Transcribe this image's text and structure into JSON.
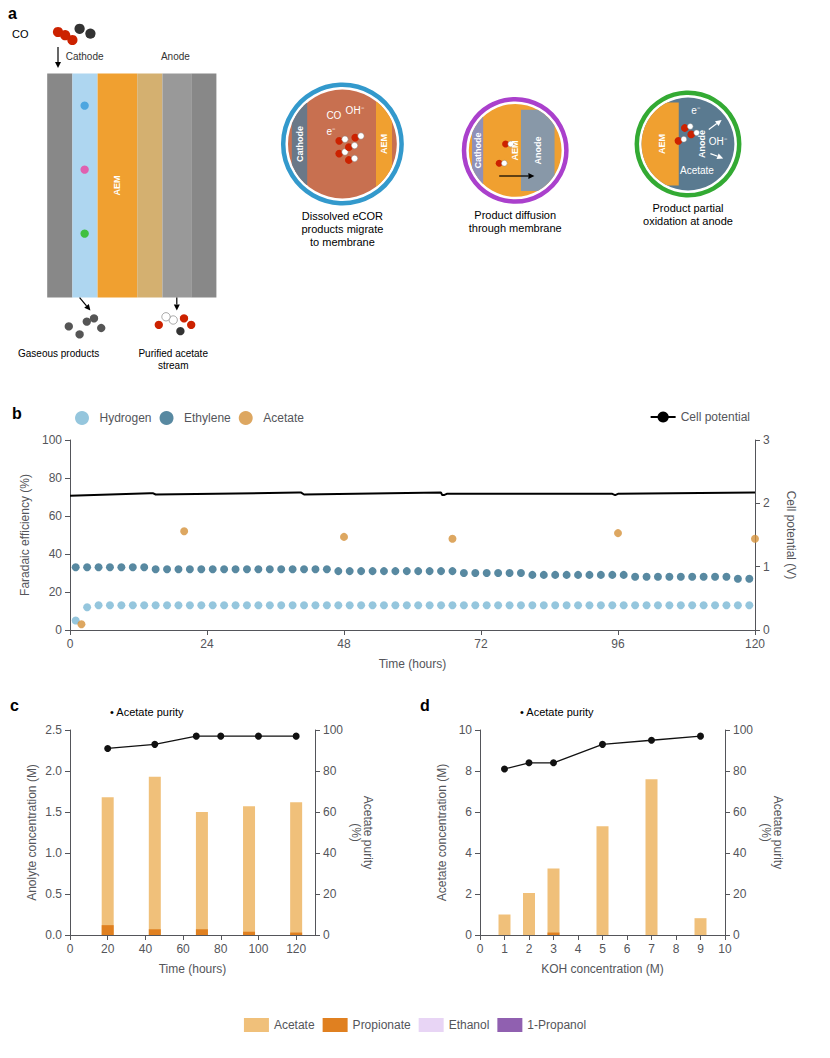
{
  "chart_data": [
    {
      "type": "diagram",
      "title": "a",
      "annotations": [
        "AEM",
        "Cathode",
        "Anode",
        "CO",
        "Gaseous products",
        "Purified acetate\nstream",
        "Cathode",
        "AEM",
        "CO",
        "OH⁻",
        "e⁻",
        "Dissolved eCOR\nproducts migrate\nto membrane",
        "Cathode",
        "AEM",
        "Anode",
        "Product diffusion\nthrough membrane",
        "AEM",
        "Anode",
        "e⁻",
        "OH⁻",
        "Acetate",
        "Product partial\noxidation at anode"
      ]
    },
    {
      "type": "scatter",
      "title": "b",
      "x_label": "Time (hours)",
      "y_label": "Faradaic efficiency (%)",
      "y2_label": "Cell potential (V)",
      "xlim": [
        0,
        120
      ],
      "xticks": [
        0,
        24,
        48,
        72,
        96,
        120
      ],
      "ylim": [
        0,
        100
      ],
      "yticks": [
        0,
        20,
        40,
        60,
        80,
        100
      ],
      "y2lim": [
        0,
        3
      ],
      "y2ticks": [
        0,
        1,
        2,
        3
      ],
      "grid": false,
      "legend": "top",
      "series": [
        {
          "name": "Hydrogen",
          "color": "#7ab8d4",
          "x": [
            1,
            3,
            5,
            7,
            9,
            11,
            13,
            15,
            17,
            19,
            21,
            23,
            25,
            27,
            29,
            31,
            33,
            35,
            37,
            39,
            41,
            43,
            45,
            47,
            49,
            51,
            53,
            55,
            57,
            59,
            61,
            63,
            65,
            67,
            69,
            71,
            73,
            75,
            77,
            79,
            81,
            83,
            85,
            87,
            89,
            91,
            93,
            95,
            97,
            99,
            101,
            103,
            105,
            107,
            109,
            111,
            113,
            115,
            117,
            119
          ],
          "values": [
            5,
            12,
            13,
            13,
            13,
            13,
            13,
            13,
            13,
            13,
            13,
            13,
            13,
            13,
            13,
            13,
            13,
            13,
            13,
            13,
            13,
            13,
            13,
            13,
            13,
            13,
            13,
            13,
            13,
            13,
            13,
            13,
            13,
            13,
            13,
            13,
            13,
            13,
            13,
            13,
            13,
            13,
            13,
            13,
            13,
            13,
            13,
            13,
            13,
            13,
            13,
            13,
            13,
            13,
            13,
            13,
            13,
            13,
            13,
            13
          ]
        },
        {
          "name": "Ethylene",
          "color": "#2e6b8a",
          "x": [
            1,
            3,
            5,
            7,
            9,
            11,
            13,
            15,
            17,
            19,
            21,
            23,
            25,
            27,
            29,
            31,
            33,
            35,
            37,
            39,
            41,
            43,
            45,
            47,
            49,
            51,
            53,
            55,
            57,
            59,
            61,
            63,
            65,
            67,
            69,
            71,
            73,
            75,
            77,
            79,
            81,
            83,
            85,
            87,
            89,
            91,
            93,
            95,
            97,
            99,
            101,
            103,
            105,
            107,
            109,
            111,
            113,
            115,
            117,
            119
          ],
          "values": [
            33,
            33,
            33,
            33,
            33,
            33,
            33,
            32,
            32,
            32,
            32,
            32,
            32,
            32,
            32,
            32,
            32,
            32,
            32,
            32,
            32,
            32,
            32,
            31,
            31,
            31,
            31,
            31,
            31,
            31,
            31,
            31,
            31,
            31,
            30,
            30,
            30,
            30,
            30,
            30,
            29,
            29,
            29,
            29,
            29,
            29,
            29,
            29,
            29,
            28,
            28,
            28,
            28,
            28,
            28,
            28,
            28,
            28,
            27,
            27
          ]
        },
        {
          "name": "Acetate",
          "color": "#d4913a",
          "x": [
            2,
            20,
            48,
            67,
            96,
            120
          ],
          "values": [
            3,
            52,
            49,
            48,
            51,
            48
          ]
        },
        {
          "name": "Cell potential",
          "type": "line",
          "axis": "y2",
          "color": "#000000",
          "x": [
            0,
            14,
            14.5,
            15,
            40,
            40.5,
            41,
            65,
            65.2,
            65.5,
            66,
            95,
            95.5,
            96,
            120
          ],
          "values": [
            2.12,
            2.16,
            2.16,
            2.14,
            2.17,
            2.17,
            2.14,
            2.17,
            2.13,
            2.13,
            2.15,
            2.15,
            2.13,
            2.15,
            2.17
          ]
        }
      ]
    },
    {
      "type": "bar",
      "title": "c",
      "stacked": true,
      "x_label": "Time (hours)",
      "y_label": "Anolyte concentration (M)",
      "y2_label": "Acetate purity\n(%)",
      "xlim": [
        0,
        130
      ],
      "xticks": [
        0,
        20,
        40,
        60,
        80,
        100,
        120
      ],
      "ylim": [
        0,
        2.5
      ],
      "yticks": [
        {
          "value": 0,
          "label": "0.0"
        },
        0.5,
        {
          "value": 1.0,
          "label": "1.0"
        },
        1.5,
        {
          "value": 2.0,
          "label": "2.0"
        },
        2.5
      ],
      "y2lim": [
        0,
        100
      ],
      "y2ticks": [
        0,
        20,
        40,
        60,
        80,
        100
      ],
      "grid": false,
      "annotations": [
        "• Acetate purity"
      ],
      "series": [
        {
          "name": "Acetate",
          "color": "#f0c07a",
          "x": [
            20,
            45,
            70,
            95,
            120
          ],
          "values": [
            1.68,
            1.93,
            1.5,
            1.57,
            1.62
          ]
        },
        {
          "name": "Propionate",
          "color": "#e08020",
          "x": [
            20,
            45,
            70,
            95,
            120
          ],
          "values": [
            0.12,
            0.07,
            0.07,
            0.04,
            0.03
          ]
        },
        {
          "name": "Acetate purity",
          "type": "line",
          "axis": "y2",
          "color": "#111111",
          "marker": "circle",
          "x": [
            20,
            45,
            67,
            80,
            100,
            120
          ],
          "values": [
            91,
            93,
            97,
            97,
            97,
            97
          ]
        }
      ]
    },
    {
      "type": "bar",
      "title": "d",
      "stacked": true,
      "x_label": "KOH concentration (M)",
      "y_label": "Acetate concentration (M)",
      "y2_label": "Acetate purity\n(%)",
      "xlim": [
        0,
        10
      ],
      "xticks": [
        0,
        1,
        2,
        3,
        4,
        5,
        6,
        7,
        8,
        9,
        10
      ],
      "ylim": [
        0,
        10
      ],
      "yticks": [
        0,
        2,
        4,
        6,
        8,
        10
      ],
      "y2lim": [
        0,
        100
      ],
      "y2ticks": [
        0,
        20,
        40,
        60,
        80,
        100
      ],
      "grid": false,
      "annotations": [
        "• Acetate purity"
      ],
      "series": [
        {
          "name": "Acetate",
          "color": "#f0c07a",
          "x": [
            1,
            2,
            3,
            5,
            7,
            9
          ],
          "values": [
            1.0,
            2.05,
            3.25,
            5.3,
            7.6,
            0.82
          ]
        },
        {
          "name": "Propionate",
          "color": "#e08020",
          "x": [
            1,
            2,
            3,
            5,
            7,
            9
          ],
          "values": [
            0.0,
            0.0,
            0.12,
            0.0,
            0.0,
            0.0
          ]
        },
        {
          "name": "Acetate purity",
          "type": "line",
          "axis": "y2",
          "color": "#111111",
          "marker": "circle",
          "x": [
            1,
            2,
            3,
            5,
            7,
            9
          ],
          "values": [
            81,
            84,
            84,
            93,
            95,
            97
          ]
        }
      ]
    },
    {
      "type": "legend",
      "series": [
        {
          "name": "Acetate",
          "color": "#f0c07a"
        },
        {
          "name": "Propionate",
          "color": "#e08020"
        },
        {
          "name": "Ethanol",
          "color": "#e8d5f5"
        },
        {
          "name": "1-Propanol",
          "color": "#9060b0"
        }
      ]
    }
  ]
}
